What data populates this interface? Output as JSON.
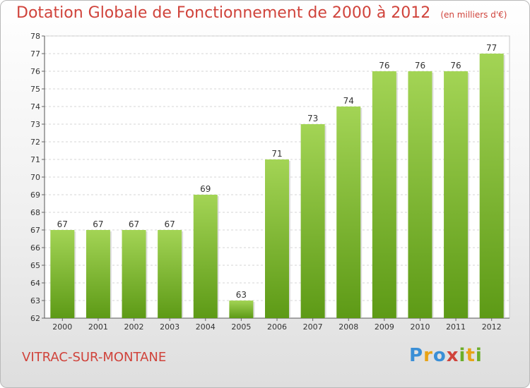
{
  "header": {
    "title": "Dotation Globale de Fonctionnement de 2000 à 2012",
    "subtitle": "(en milliers d'€)"
  },
  "footer": {
    "commune": "VITRAC-SUR-MONTANE",
    "logo_letters": [
      "P",
      "r",
      "o",
      "x",
      "i",
      "t",
      "i"
    ]
  },
  "colors": {
    "title": "#d0433b",
    "bar_top": "#a3d455",
    "bar_bottom": "#5d9a16",
    "logo": [
      "#3a8fd6",
      "#e8a317",
      "#3a8fd6",
      "#d0433b",
      "#6cae2a",
      "#e8a317",
      "#6cae2a"
    ]
  },
  "chart_data": {
    "type": "bar",
    "categories": [
      "2000",
      "2001",
      "2002",
      "2003",
      "2004",
      "2005",
      "2006",
      "2007",
      "2008",
      "2009",
      "2010",
      "2011",
      "2012"
    ],
    "values": [
      67,
      67,
      67,
      67,
      69,
      63,
      71,
      73,
      74,
      76,
      76,
      76,
      77
    ],
    "ylim": [
      62,
      78
    ],
    "yticks": [
      62,
      63,
      64,
      65,
      66,
      67,
      68,
      69,
      70,
      71,
      72,
      73,
      74,
      75,
      76,
      77,
      78
    ],
    "grid": true
  }
}
